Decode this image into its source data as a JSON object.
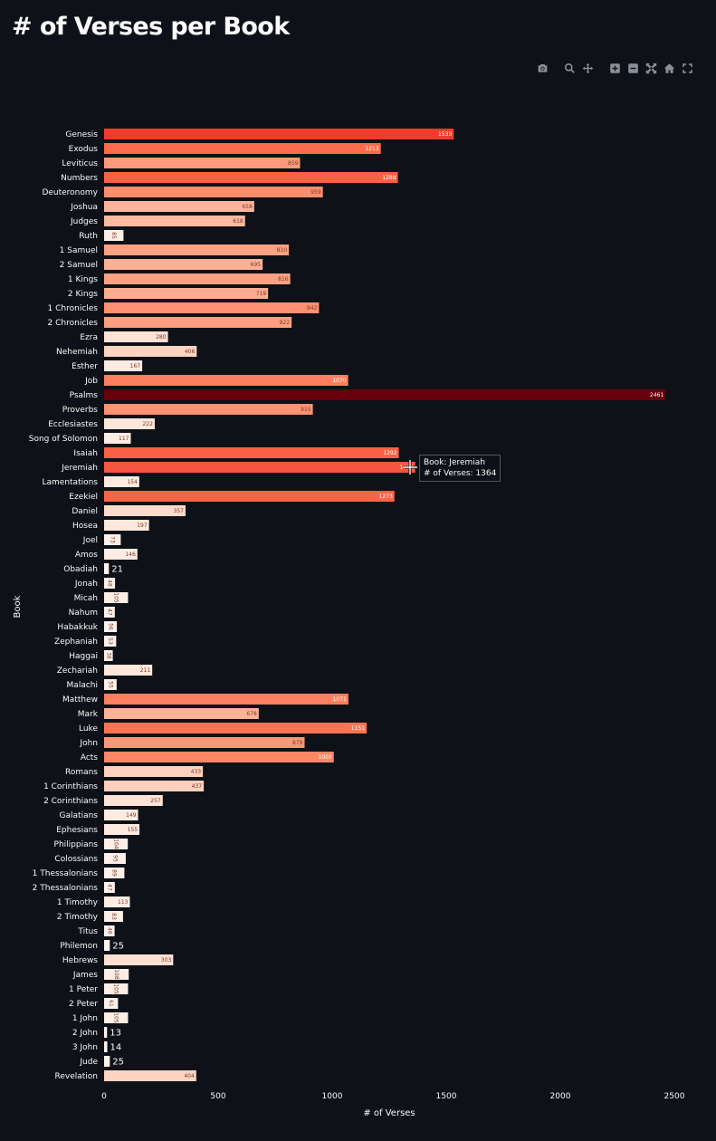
{
  "page": {
    "title": "# of Verses per Book"
  },
  "toolbar": {
    "buttons": [
      {
        "name": "download-plot-button",
        "icon": "camera-icon",
        "gap": false
      },
      {
        "name": "zoom-button",
        "icon": "magnifier-icon",
        "gap": true
      },
      {
        "name": "pan-button",
        "icon": "pan-arrows-icon",
        "gap": false
      },
      {
        "name": "zoom-in-button",
        "icon": "plus-square-icon",
        "gap": true
      },
      {
        "name": "zoom-out-button",
        "icon": "minus-square-icon",
        "gap": false
      },
      {
        "name": "autoscale-button",
        "icon": "autoscale-icon",
        "gap": false
      },
      {
        "name": "reset-axes-button",
        "icon": "home-icon",
        "gap": false
      },
      {
        "name": "fullscreen-button",
        "icon": "fullscreen-icon",
        "gap": false
      }
    ]
  },
  "tooltip": {
    "line1": "Book: Jeremiah",
    "line2": "# of Verses: 1364"
  },
  "chart_data": {
    "type": "bar",
    "orientation": "horizontal",
    "xlabel": "# of Verses",
    "ylabel": "Book",
    "xlim": [
      0,
      2500
    ],
    "xticks": [
      0,
      500,
      1000,
      1500,
      2000,
      2500
    ],
    "colorscale": "Reds",
    "color_range": [
      0,
      2461
    ],
    "grid": false,
    "categories": [
      "Genesis",
      "Exodus",
      "Leviticus",
      "Numbers",
      "Deuteronomy",
      "Joshua",
      "Judges",
      "Ruth",
      "1 Samuel",
      "2 Samuel",
      "1 Kings",
      "2 Kings",
      "1 Chronicles",
      "2 Chronicles",
      "Ezra",
      "Nehemiah",
      "Esther",
      "Job",
      "Psalms",
      "Proverbs",
      "Ecclesiastes",
      "Song of Solomon",
      "Isaiah",
      "Jeremiah",
      "Lamentations",
      "Ezekiel",
      "Daniel",
      "Hosea",
      "Joel",
      "Amos",
      "Obadiah",
      "Jonah",
      "Micah",
      "Nahum",
      "Habakkuk",
      "Zephaniah",
      "Haggai",
      "Zechariah",
      "Malachi",
      "Matthew",
      "Mark",
      "Luke",
      "John",
      "Acts",
      "Romans",
      "1 Corinthians",
      "2 Corinthians",
      "Galatians",
      "Ephesians",
      "Philippians",
      "Colossians",
      "1 Thessalonians",
      "2 Thessalonians",
      "1 Timothy",
      "2 Timothy",
      "Titus",
      "Philemon",
      "Hebrews",
      "James",
      "1 Peter",
      "2 Peter",
      "1 John",
      "2 John",
      "3 John",
      "Jude",
      "Revelation"
    ],
    "values": [
      1533,
      1213,
      859,
      1288,
      959,
      658,
      618,
      85,
      810,
      695,
      816,
      719,
      942,
      822,
      280,
      406,
      167,
      1070,
      2461,
      915,
      222,
      117,
      1292,
      1364,
      154,
      1273,
      357,
      197,
      73,
      146,
      21,
      48,
      105,
      47,
      56,
      53,
      38,
      211,
      55,
      1071,
      678,
      1151,
      879,
      1007,
      433,
      437,
      257,
      149,
      155,
      104,
      95,
      89,
      47,
      113,
      83,
      46,
      25,
      303,
      108,
      105,
      61,
      105,
      13,
      14,
      25,
      404
    ]
  }
}
